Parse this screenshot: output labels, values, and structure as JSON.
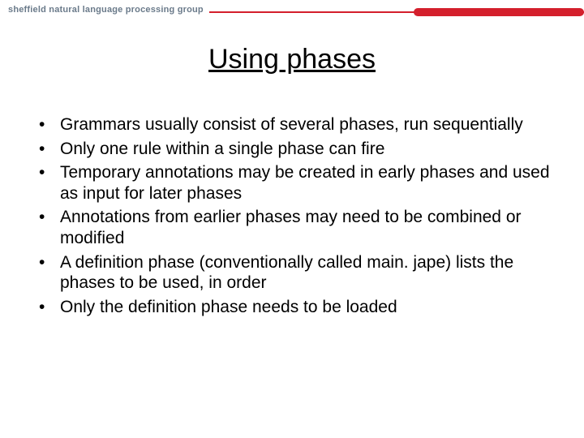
{
  "header": {
    "group_label": "sheffield natural language processing group",
    "accent_color": "#d41f2c",
    "label_color": "#6a7a8a"
  },
  "slide": {
    "title": "Using phases",
    "title_fontsize": 34,
    "title_color": "#000000",
    "bullets": [
      "Grammars usually consist of several phases, run sequentially",
      "Only one rule within a single phase can fire",
      "Temporary annotations may be created in early phases and used as input for later phases",
      "Annotations from earlier phases may need to be combined or modified",
      "A definition phase (conventionally called main. jape) lists the phases to be used, in order",
      "Only the definition phase needs to be loaded"
    ],
    "bullet_fontsize": 21,
    "bullet_color": "#000000",
    "background_color": "#ffffff"
  }
}
